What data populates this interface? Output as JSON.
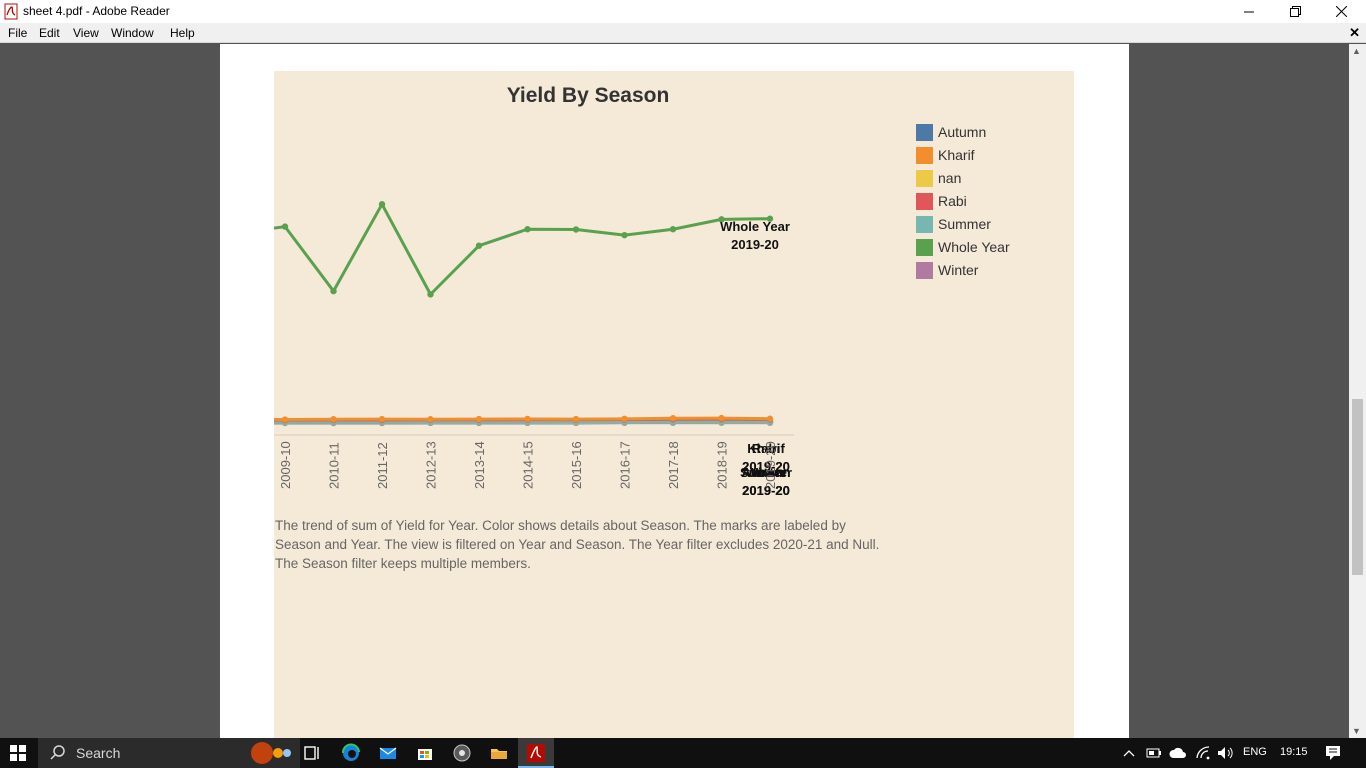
{
  "window": {
    "title": "sheet 4.pdf - Adobe Reader"
  },
  "menu": {
    "items": [
      "File",
      "Edit",
      "View",
      "Window",
      "Help"
    ]
  },
  "chart_data": {
    "type": "line",
    "title": "Yield By Season",
    "categories": [
      "2009-10",
      "2010-11",
      "2011-12",
      "2012-13",
      "2013-14",
      "2014-15",
      "2015-16",
      "2016-17",
      "2017-18",
      "2018-19",
      "2019-20"
    ],
    "series": [
      {
        "name": "Whole Year",
        "color": "#59a14f",
        "values": [
          1500,
          1010,
          1670,
          985,
          1355,
          1480,
          1478,
          1435,
          1480,
          1555,
          1560
        ]
      },
      {
        "name": "Kharif",
        "color": "#f28e2b",
        "values": [
          34,
          36,
          37,
          36,
          37,
          38,
          37,
          39,
          44,
          45,
          40
        ]
      },
      {
        "name": "Rabi",
        "color": "#e15759",
        "values": [
          30,
          31,
          31,
          32,
          32,
          33,
          33,
          34,
          36,
          37,
          35
        ]
      },
      {
        "name": "Summer",
        "color": "#76b7b2",
        "values": [
          14,
          15,
          15,
          15,
          16,
          16,
          16,
          17,
          17,
          18,
          18
        ]
      },
      {
        "name": "Winter",
        "color": "#b07aa1",
        "values": [
          12,
          12,
          12,
          13,
          13,
          13,
          14,
          14,
          14,
          15,
          15
        ]
      },
      {
        "name": "nan",
        "color": "#edc948",
        "values": [
          10,
          10,
          10,
          11,
          11,
          11,
          11,
          12,
          12,
          12,
          12
        ]
      },
      {
        "name": "Autumn",
        "color": "#4e79a7",
        "values": [
          8,
          8,
          8,
          9,
          9,
          9,
          9,
          10,
          10,
          10,
          10
        ]
      }
    ],
    "end_labels": [
      {
        "series": "Whole Year",
        "lines": [
          "Whole Year",
          "2019-20"
        ]
      },
      {
        "series": "Kharif",
        "lines": [
          "Kharif",
          "2019-20"
        ]
      },
      {
        "series": "Rabi",
        "lines": [
          "Rabi",
          "2019-20"
        ]
      },
      {
        "series": "Summer",
        "lines": [
          "Summer",
          "2019-20"
        ]
      },
      {
        "series": "Winter",
        "lines": [
          "Winter",
          "2019-20"
        ]
      },
      {
        "series": "Autumn",
        "lines": [
          "Autumn",
          "2019-20"
        ]
      }
    ],
    "legend": [
      "Autumn",
      "Kharif",
      "nan",
      "Rabi",
      "Summer",
      "Whole Year",
      "Winter"
    ],
    "legend_colors": [
      "#4e79a7",
      "#f28e2b",
      "#edc948",
      "#e15759",
      "#76b7b2",
      "#59a14f",
      "#b07aa1"
    ],
    "legend_position": "right",
    "ylim": [
      0,
      1830
    ]
  },
  "caption": "The trend of sum of Yield for Year.  Color shows details about Season.  The marks are labeled by Season and Year. The view is filtered on Year and Season. The Year filter excludes 2020-21 and Null. The Season filter keeps multiple members.",
  "taskbar": {
    "search_placeholder": "Search",
    "language": "ENG",
    "time": "19:15"
  }
}
